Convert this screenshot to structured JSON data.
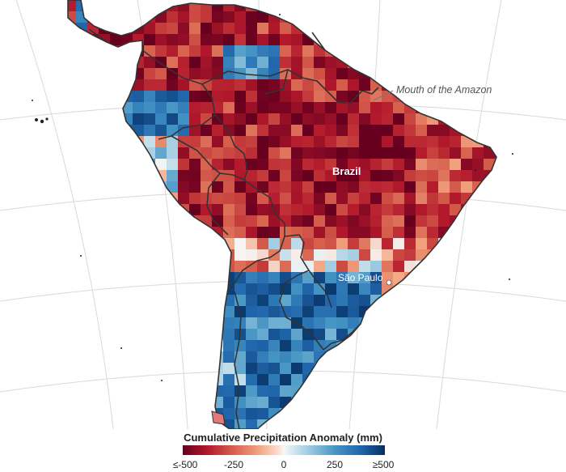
{
  "labels": {
    "brazil": "Brazil",
    "sao_paulo": "São Paulo",
    "amazon_mouth": "Mouth of the Amazon"
  },
  "legend": {
    "title": "Cumulative Precipitation Anomaly (mm)",
    "ticks": [
      "≤-500",
      "-250",
      "0",
      "250",
      "≥500"
    ]
  },
  "colors": {
    "dry_extreme": "#67001f",
    "dry": "#b2182b",
    "neutral": "#f7f7f7",
    "wet": "#2166ac",
    "wet_extreme": "#053061",
    "ocean": "#ffffff",
    "border": "#333333",
    "graticule": "#d9d9d9"
  }
}
